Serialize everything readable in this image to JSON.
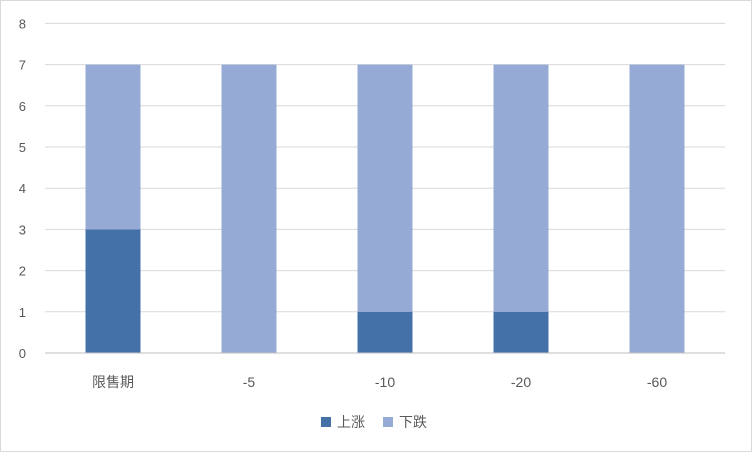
{
  "chart_data": {
    "type": "bar",
    "stacked": true,
    "categories": [
      "限售期",
      "-5",
      "-10",
      "-20",
      "-60"
    ],
    "series": [
      {
        "name": "上涨",
        "values": [
          3,
          0,
          1,
          1,
          0
        ],
        "color": "#4472a8"
      },
      {
        "name": "下跌",
        "values": [
          4,
          7,
          6,
          6,
          7
        ],
        "color": "#95aad4"
      }
    ],
    "yticks": [
      0,
      1,
      2,
      3,
      4,
      5,
      6,
      7,
      8
    ],
    "ylim": [
      0,
      8
    ],
    "grid": true,
    "legend": "bottom"
  }
}
